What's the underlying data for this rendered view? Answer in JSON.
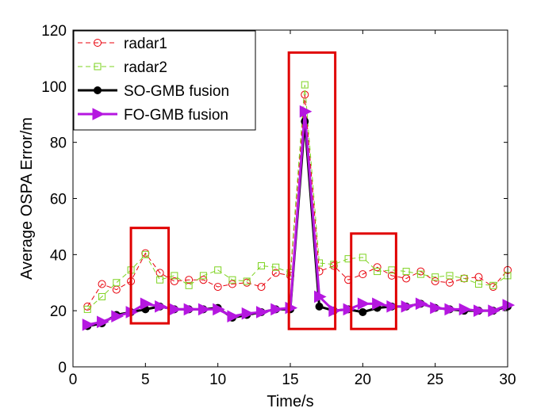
{
  "chart_data": {
    "type": "line",
    "title": "",
    "xlabel": "Time/s",
    "ylabel": "Average OSPA Error/m",
    "xlim": [
      0,
      30
    ],
    "ylim": [
      0,
      120
    ],
    "xticks": [
      0,
      5,
      10,
      15,
      20,
      25,
      30
    ],
    "yticks": [
      0,
      20,
      40,
      60,
      80,
      100,
      120
    ],
    "grid": false,
    "legend_position": "top-left",
    "x": [
      1,
      2,
      3,
      4,
      5,
      6,
      7,
      8,
      9,
      10,
      11,
      12,
      13,
      14,
      15,
      16,
      17,
      18,
      19,
      20,
      21,
      22,
      23,
      24,
      25,
      26,
      27,
      28,
      29,
      30
    ],
    "series": [
      {
        "name": "radar1",
        "color": "#e8000b",
        "marker": "circle",
        "line": "dashed",
        "values": [
          21.5,
          29.5,
          27.5,
          30.5,
          40.5,
          33.5,
          30.5,
          31,
          31,
          28.5,
          29.5,
          30,
          28.5,
          33.5,
          32.5,
          97,
          34,
          36,
          31,
          33,
          35.5,
          32.5,
          31.5,
          34,
          30.5,
          30,
          31.5,
          32,
          28.5,
          34.5
        ]
      },
      {
        "name": "radar2",
        "color": "#7ed321",
        "marker": "square",
        "line": "dashed",
        "values": [
          20.5,
          25,
          30,
          34.5,
          40,
          31,
          32.5,
          29,
          32.5,
          34.5,
          31,
          30.5,
          36,
          35.5,
          33.5,
          100.5,
          37,
          36.5,
          38.5,
          39,
          34,
          34.5,
          34,
          33,
          32,
          32.5,
          31.5,
          29.5,
          29,
          32.5
        ]
      },
      {
        "name": "SO-GMB fusion",
        "color": "#000000",
        "marker": "dot",
        "line": "solid",
        "values": [
          14.5,
          15.5,
          18.5,
          19.5,
          20.5,
          21.5,
          20.5,
          20.5,
          20.5,
          21,
          17.5,
          18.5,
          19.5,
          20.5,
          20.5,
          87.5,
          21.5,
          20,
          20.5,
          19.5,
          21,
          21.5,
          21.5,
          22.5,
          21,
          20.5,
          20,
          20,
          20,
          21.5
        ]
      },
      {
        "name": "FO-GMB fusion",
        "color": "#b517e0",
        "marker": "triangle-right",
        "line": "solid",
        "values": [
          15,
          16,
          18,
          19.5,
          22.5,
          21.5,
          20.5,
          20.5,
          20.5,
          20.5,
          18,
          19,
          19.5,
          20.5,
          21,
          91,
          25,
          20,
          20.5,
          22.5,
          22.5,
          21.5,
          21.5,
          22.5,
          21,
          20.5,
          20.5,
          20,
          20,
          22
        ]
      }
    ],
    "highlight_boxes": [
      {
        "x": [
          4,
          6.6
        ],
        "y": [
          15.5,
          49.5
        ],
        "color": "#e00000"
      },
      {
        "x": [
          14.9,
          18.1
        ],
        "y": [
          13.5,
          112
        ],
        "color": "#e00000"
      },
      {
        "x": [
          19.2,
          22.3
        ],
        "y": [
          13.5,
          47.5
        ],
        "color": "#e00000"
      }
    ]
  }
}
